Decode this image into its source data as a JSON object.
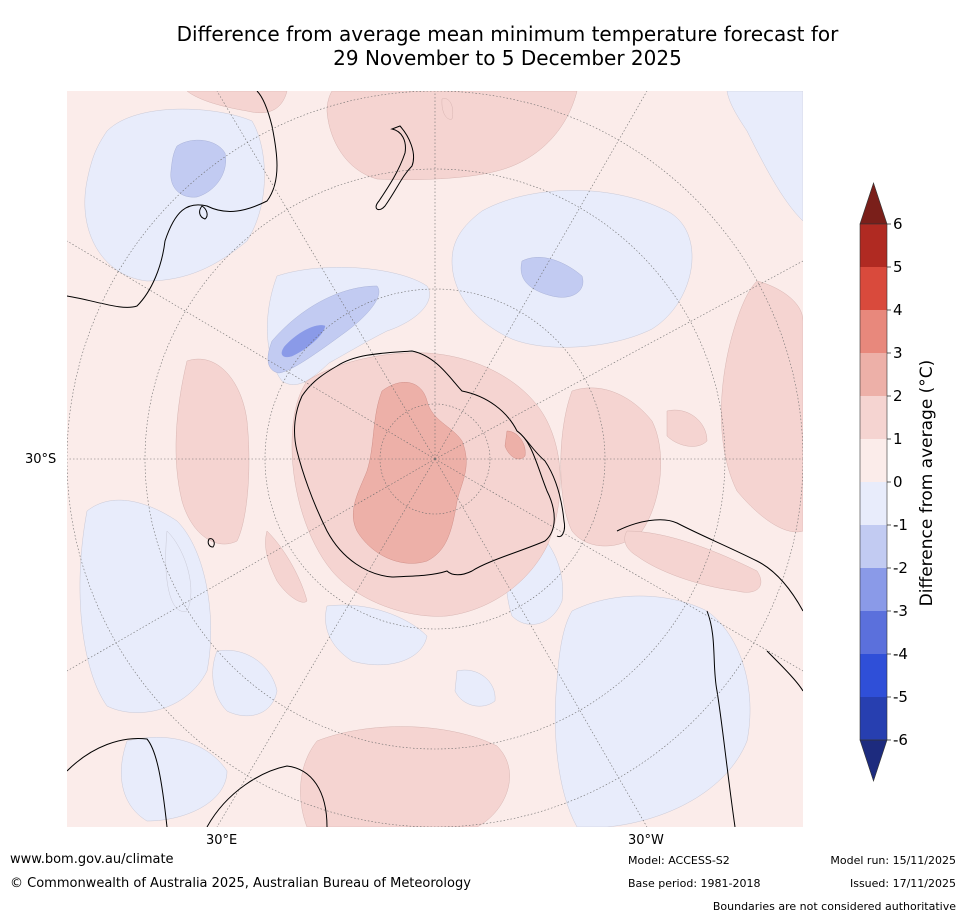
{
  "title": {
    "line1": "Difference from average mean minimum temperature forecast for",
    "line2": "29 November to 5 December 2025"
  },
  "map": {
    "lat_label": "30°S",
    "lon_labels": {
      "east": "30°E",
      "west": "30°W"
    }
  },
  "colorbar": {
    "label": "Difference from average (°C)",
    "ticks": [
      "6",
      "5",
      "4",
      "3",
      "2",
      "1",
      "0",
      "-1",
      "-2",
      "-3",
      "-4",
      "-5",
      "-6"
    ],
    "colors": {
      "above_6": "#7a1f1a",
      "5_6": "#b02a22",
      "4_5": "#d94a3c",
      "3_4": "#e8887c",
      "2_3": "#edb0a8",
      "1_2": "#f5d4d1",
      "0_1": "#fbecea",
      "m1_0": "#e8ecfb",
      "m2_m1": "#c2cbf2",
      "m3_m2": "#8a9ae8",
      "m4_m3": "#5b70dc",
      "m5_m4": "#2f4fd8",
      "m6_m5": "#273fb0",
      "below_m6": "#1d2b7e"
    }
  },
  "footer": {
    "website": "www.bom.gov.au/climate",
    "copyright": "© Commonwealth of Australia 2025, Australian Bureau of Meteorology",
    "model": "Model: ACCESS-S2",
    "base_period": "Base period: 1981-2018",
    "model_run": "Model run: 15/11/2025",
    "issued": "Issued: 17/11/2025",
    "boundaries": "Boundaries are not considered authoritative"
  }
}
